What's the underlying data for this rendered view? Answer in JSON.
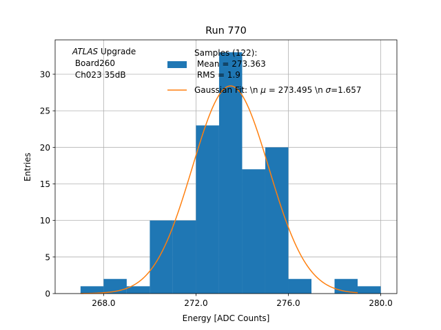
{
  "chart_data": {
    "type": "bar",
    "title": "Run 770",
    "xlabel": "Energy [ADC Counts]",
    "ylabel": "Entries",
    "xlim": [
      265.9,
      280.7
    ],
    "ylim": [
      0,
      34.7
    ],
    "grid": true,
    "x_ticks": [
      268,
      272,
      276,
      280
    ],
    "x_tick_labels": [
      "268.0",
      "272.0",
      "276.0",
      "280.0"
    ],
    "y_ticks": [
      0,
      5,
      10,
      15,
      20,
      25,
      30
    ],
    "y_tick_labels": [
      "0",
      "5",
      "10",
      "15",
      "20",
      "25",
      "30"
    ],
    "histogram": {
      "bin_edges": [
        267,
        268,
        269,
        270,
        271,
        272,
        273,
        274,
        275,
        276,
        277,
        278,
        279,
        280
      ],
      "values": [
        1,
        2,
        1,
        10,
        10,
        23,
        33,
        17,
        20,
        2,
        0,
        2,
        1
      ],
      "color": "#1f77b4"
    },
    "fit": {
      "mu": 273.495,
      "sigma": 1.657,
      "amplitude": 28.4,
      "x_range": [
        267.0,
        279.0
      ],
      "color": "#ff7f0e"
    },
    "annotation": {
      "atlas": "ATLAS",
      "upgrade": " Upgrade",
      "line2": " Board260",
      "line3": " Ch023 35dB"
    },
    "legend": {
      "position": "top-center",
      "samples_line1": "Samples (122):",
      "samples_line2": " Mean = 273.363",
      "samples_line3": " RMS = 1.9",
      "fit_label_prefix": "Gaussian Fit: \\n ",
      "fit_mu_symbol": "μ",
      "fit_label_mid": " = 273.495 \\n ",
      "fit_sigma_symbol": "σ",
      "fit_label_end": "=1.657"
    }
  }
}
